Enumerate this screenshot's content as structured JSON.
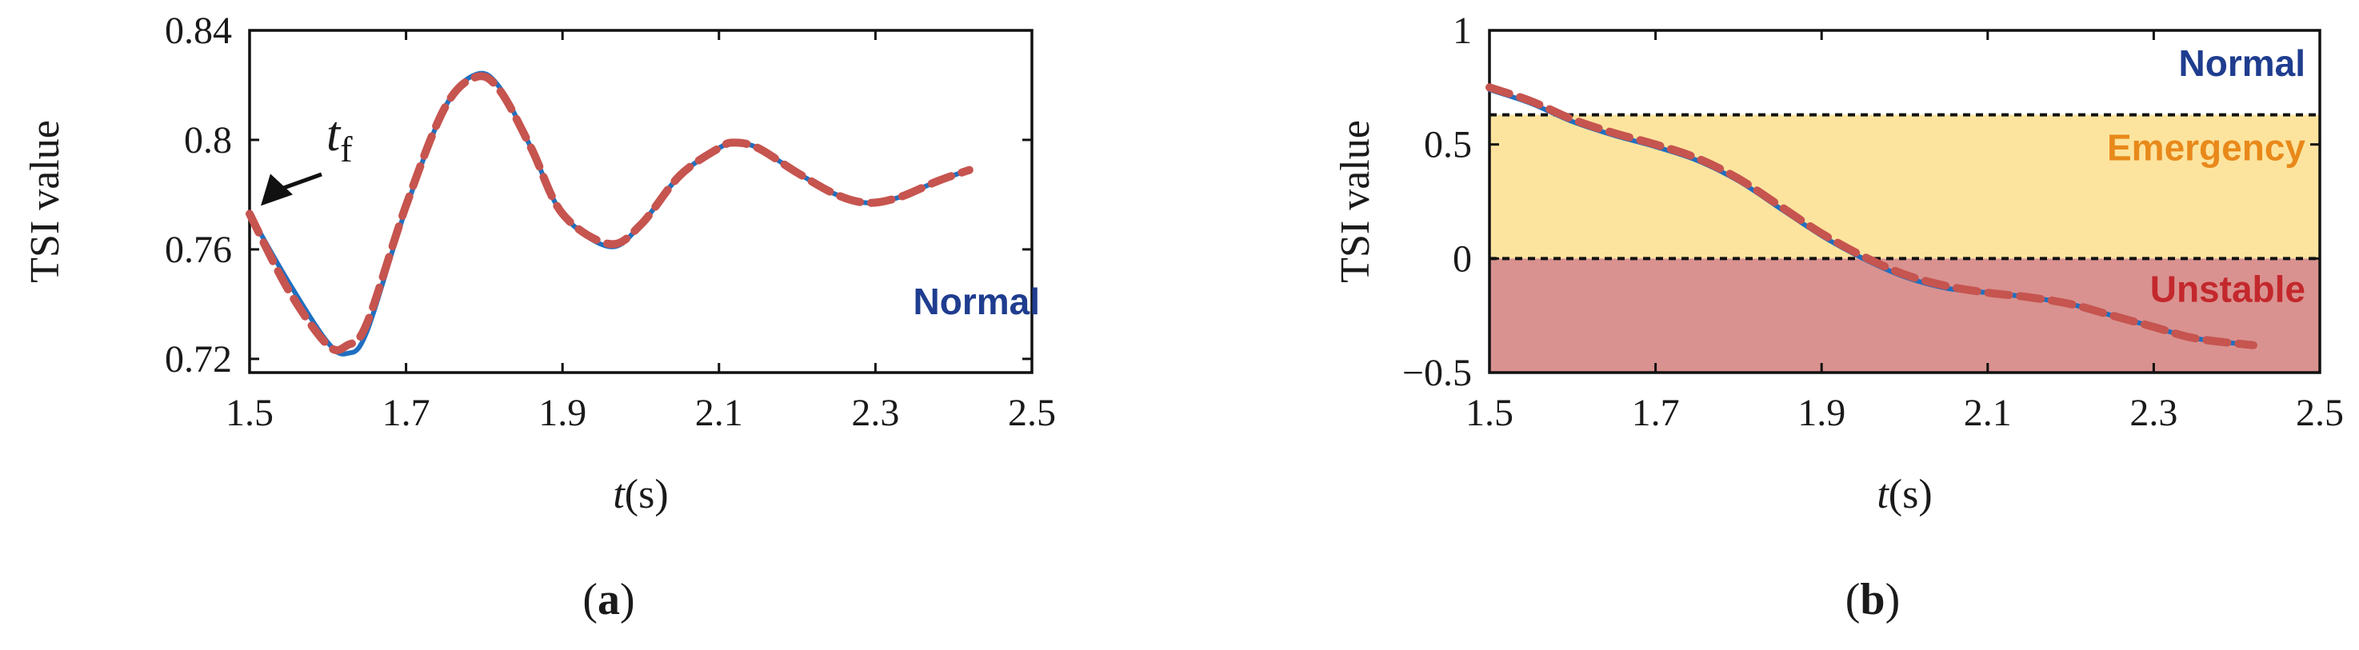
{
  "colors": {
    "true_line": "#1f6fc0",
    "pred_line": "#c6544f",
    "normal_text": "#1f3d8f",
    "emergency_text": "#e8891a",
    "unstable_text": "#c3282c",
    "emergency_band": "#fde49e",
    "unstable_band": "#d99290"
  },
  "chart_data": [
    {
      "type": "line",
      "panel_label": "(a)",
      "panel_letter": "a",
      "xlabel": "t(s)",
      "xlabel_var": "t",
      "xlabel_unit": "(s)",
      "ylabel": "TSI value",
      "xlim": [
        1.5,
        2.5
      ],
      "ylim": [
        0.715,
        0.84
      ],
      "xticks": [
        "1.5",
        "1.7",
        "1.9",
        "2.1",
        "2.3",
        "2.5"
      ],
      "yticks": [
        "0.72",
        "0.76",
        "0.8",
        "0.84"
      ],
      "annotation": {
        "text": "t_f",
        "main": "t",
        "sub": "f",
        "at": [
          1.5,
          0.773
        ]
      },
      "state_label": "Normal",
      "series": [
        {
          "name": "actual",
          "style": "solid",
          "x": [
            1.5,
            1.55,
            1.6,
            1.625,
            1.65,
            1.7,
            1.75,
            1.79,
            1.82,
            1.86,
            1.9,
            1.96,
            2.0,
            2.05,
            2.1,
            2.12,
            2.15,
            2.2,
            2.25,
            2.29,
            2.33,
            2.38,
            2.42
          ],
          "y": [
            0.773,
            0.748,
            0.726,
            0.722,
            0.73,
            0.775,
            0.812,
            0.824,
            0.819,
            0.797,
            0.773,
            0.761,
            0.769,
            0.787,
            0.797,
            0.799,
            0.797,
            0.788,
            0.78,
            0.777,
            0.779,
            0.785,
            0.789
          ]
        },
        {
          "name": "predicted",
          "style": "dashed",
          "x": [
            1.5,
            1.55,
            1.6,
            1.625,
            1.65,
            1.7,
            1.75,
            1.79,
            1.82,
            1.86,
            1.9,
            1.96,
            2.0,
            2.05,
            2.1,
            2.12,
            2.15,
            2.2,
            2.25,
            2.29,
            2.33,
            2.38,
            2.42
          ],
          "y": [
            0.773,
            0.745,
            0.725,
            0.725,
            0.733,
            0.776,
            0.812,
            0.823,
            0.818,
            0.797,
            0.773,
            0.762,
            0.769,
            0.787,
            0.797,
            0.799,
            0.797,
            0.788,
            0.78,
            0.777,
            0.779,
            0.785,
            0.789
          ]
        }
      ]
    },
    {
      "type": "line",
      "panel_label": "(b)",
      "panel_letter": "b",
      "xlabel": "t(s)",
      "xlabel_var": "t",
      "xlabel_unit": "(s)",
      "ylabel": "TSI value",
      "xlim": [
        1.5,
        2.5
      ],
      "ylim": [
        -0.5,
        1.0
      ],
      "xticks": [
        "1.5",
        "1.7",
        "1.9",
        "2.1",
        "2.3",
        "2.5"
      ],
      "yticks": [
        "−0.5",
        "0",
        "0.5",
        "1"
      ],
      "ytick_values": [
        -0.5,
        0,
        0.5,
        1
      ],
      "thresholds": [
        0.63,
        0
      ],
      "regions": [
        {
          "label": "Normal",
          "from": 0.63,
          "to": 1.0,
          "anchor_y": 0.85
        },
        {
          "label": "Emergency",
          "from": 0.0,
          "to": 0.63,
          "anchor_y": 0.48
        },
        {
          "label": "Unstable",
          "from": -0.5,
          "to": 0.0,
          "anchor_y": -0.14
        }
      ],
      "series": [
        {
          "name": "actual",
          "style": "solid",
          "x": [
            1.5,
            1.55,
            1.6,
            1.65,
            1.7,
            1.75,
            1.8,
            1.85,
            1.9,
            1.95,
            2.0,
            2.05,
            2.1,
            2.15,
            2.2,
            2.25,
            2.3,
            2.35,
            2.42
          ],
          "y": [
            0.74,
            0.68,
            0.6,
            0.54,
            0.49,
            0.43,
            0.34,
            0.22,
            0.1,
            0.0,
            -0.08,
            -0.13,
            -0.15,
            -0.17,
            -0.2,
            -0.25,
            -0.3,
            -0.35,
            -0.38
          ]
        },
        {
          "name": "predicted",
          "style": "dashed",
          "x": [
            1.5,
            1.55,
            1.6,
            1.65,
            1.7,
            1.75,
            1.8,
            1.85,
            1.9,
            1.95,
            2.0,
            2.05,
            2.1,
            2.15,
            2.2,
            2.25,
            2.3,
            2.35,
            2.42
          ],
          "y": [
            0.75,
            0.69,
            0.61,
            0.55,
            0.5,
            0.44,
            0.35,
            0.23,
            0.11,
            0.01,
            -0.07,
            -0.12,
            -0.15,
            -0.17,
            -0.2,
            -0.25,
            -0.3,
            -0.35,
            -0.38
          ]
        }
      ]
    }
  ]
}
